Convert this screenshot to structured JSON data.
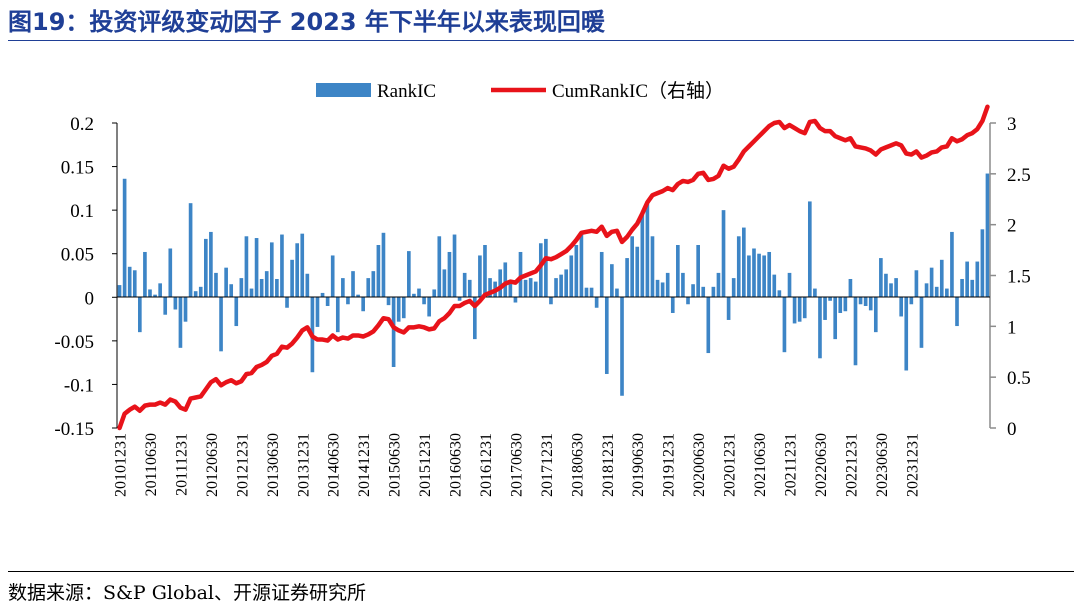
{
  "figure": {
    "title": "图19：投资评级变动因子 2023 年下半年以来表现回暖",
    "source": "数据来源：S&P Global、开源证券研究所"
  },
  "chart_data": {
    "type": "bar+line",
    "series": [
      {
        "name": "RankIC",
        "type": "bar",
        "axis": "left",
        "color": "#3d85c6",
        "values": [
          0.014,
          0.136,
          0.035,
          0.031,
          -0.04,
          0.052,
          0.009,
          0.003,
          0.016,
          -0.02,
          0.056,
          -0.014,
          -0.058,
          -0.028,
          0.108,
          0.007,
          0.012,
          0.067,
          0.075,
          0.028,
          -0.062,
          0.034,
          0.015,
          -0.033,
          0.022,
          0.07,
          0.01,
          0.068,
          0.021,
          0.03,
          0.063,
          0.021,
          0.072,
          -0.012,
          0.043,
          0.062,
          0.073,
          0.027,
          -0.086,
          -0.034,
          0.005,
          -0.01,
          0.048,
          -0.04,
          0.022,
          -0.008,
          0.03,
          0.003,
          -0.016,
          0.022,
          0.03,
          0.06,
          0.074,
          -0.009,
          -0.08,
          -0.028,
          -0.024,
          0.053,
          0.004,
          0.01,
          -0.008,
          -0.022,
          0.009,
          0.07,
          0.032,
          0.052,
          0.072,
          -0.004,
          0.028,
          0.02,
          -0.048,
          0.048,
          0.06,
          0.022,
          0.018,
          0.032,
          0.04,
          0.018,
          -0.006,
          0.052,
          0.02,
          0.022,
          0.018,
          0.062,
          0.067,
          -0.008,
          0.022,
          0.026,
          0.032,
          0.048,
          0.06,
          0.073,
          0.011,
          0.011,
          -0.012,
          0.052,
          -0.088,
          0.038,
          0.01,
          -0.113,
          0.045,
          0.07,
          0.058,
          0.098,
          0.11,
          0.07,
          0.02,
          0.017,
          0.028,
          -0.018,
          0.06,
          0.028,
          -0.008,
          0.015,
          0.06,
          0.012,
          -0.064,
          0.012,
          0.028,
          0.1,
          -0.026,
          0.022,
          0.07,
          0.08,
          0.048,
          0.056,
          0.05,
          0.048,
          0.052,
          0.026,
          0.008,
          -0.063,
          0.028,
          -0.03,
          -0.028,
          -0.024,
          0.11,
          0.01,
          -0.07,
          -0.026,
          -0.004,
          -0.048,
          -0.018,
          -0.016,
          0.021,
          -0.078,
          -0.008,
          -0.01,
          -0.015,
          -0.04,
          0.045,
          0.027,
          0.016,
          0.022,
          -0.022,
          -0.084,
          -0.008,
          0.031,
          -0.058,
          0.016,
          0.034,
          0.012,
          0.043,
          0.01,
          0.075,
          -0.033,
          0.021,
          0.041,
          0.02,
          0.041,
          0.078,
          0.142
        ]
      },
      {
        "name": "CumRankIC（右轴）",
        "type": "line",
        "axis": "right",
        "color": "#e8131a",
        "values": [
          0.0,
          0.14,
          0.18,
          0.21,
          0.17,
          0.22,
          0.23,
          0.23,
          0.25,
          0.23,
          0.28,
          0.26,
          0.2,
          0.18,
          0.29,
          0.3,
          0.31,
          0.38,
          0.45,
          0.48,
          0.42,
          0.45,
          0.47,
          0.44,
          0.46,
          0.53,
          0.54,
          0.6,
          0.62,
          0.65,
          0.71,
          0.73,
          0.8,
          0.79,
          0.83,
          0.89,
          0.96,
          0.99,
          0.9,
          0.87,
          0.87,
          0.86,
          0.91,
          0.87,
          0.89,
          0.88,
          0.91,
          0.91,
          0.9,
          0.92,
          0.95,
          1.01,
          1.08,
          1.07,
          0.99,
          0.96,
          0.94,
          0.99,
          0.99,
          1.0,
          0.99,
          0.97,
          0.98,
          1.05,
          1.08,
          1.13,
          1.2,
          1.2,
          1.23,
          1.25,
          1.2,
          1.25,
          1.31,
          1.33,
          1.35,
          1.38,
          1.42,
          1.44,
          1.43,
          1.48,
          1.5,
          1.52,
          1.54,
          1.6,
          1.67,
          1.66,
          1.68,
          1.71,
          1.74,
          1.79,
          1.85,
          1.92,
          1.93,
          1.94,
          1.93,
          1.98,
          1.89,
          1.93,
          1.94,
          1.83,
          1.88,
          1.95,
          2.01,
          2.11,
          2.22,
          2.29,
          2.31,
          2.33,
          2.36,
          2.34,
          2.4,
          2.43,
          2.42,
          2.44,
          2.5,
          2.51,
          2.44,
          2.45,
          2.48,
          2.58,
          2.55,
          2.57,
          2.64,
          2.72,
          2.77,
          2.82,
          2.87,
          2.92,
          2.97,
          3.0,
          3.01,
          2.95,
          2.98,
          2.95,
          2.92,
          2.9,
          3.01,
          3.02,
          2.95,
          2.92,
          2.92,
          2.87,
          2.85,
          2.83,
          2.85,
          2.77,
          2.76,
          2.75,
          2.73,
          2.69,
          2.74,
          2.76,
          2.78,
          2.8,
          2.78,
          2.7,
          2.69,
          2.72,
          2.66,
          2.68,
          2.71,
          2.72,
          2.76,
          2.77,
          2.85,
          2.82,
          2.84,
          2.88,
          2.9,
          2.94,
          3.02,
          3.16
        ]
      }
    ],
    "ylim_left": [
      -0.15,
      0.2
    ],
    "ylim_right": [
      0,
      3
    ],
    "yticks_left": [
      "0.2",
      "0.15",
      "0.1",
      "0.05",
      "0",
      "-0.05",
      "-0.1",
      "-0.15"
    ],
    "yticks_right": [
      "3",
      "2.5",
      "2",
      "1.5",
      "1",
      "0.5",
      "0"
    ],
    "xtick_labels": [
      "20101231",
      "20110630",
      "20111231",
      "20120630",
      "20121231",
      "20130630",
      "20131231",
      "20140630",
      "20141231",
      "20150630",
      "20151231",
      "20160630",
      "20161231",
      "20170630",
      "20171231",
      "20180630",
      "20181231",
      "20190630",
      "20191231",
      "20200630",
      "20201231",
      "20210630",
      "20211231",
      "20220630",
      "20221231",
      "20230630",
      "20231231"
    ],
    "legend": "top-center",
    "grid": false
  }
}
